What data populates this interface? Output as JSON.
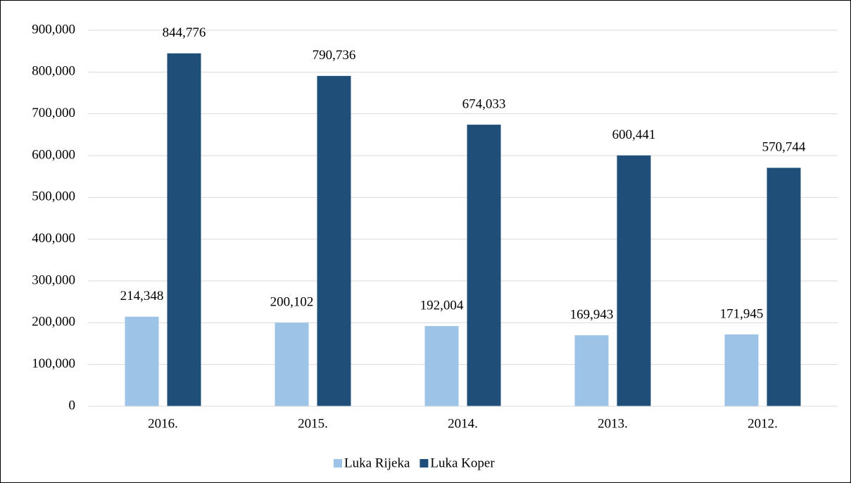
{
  "chart_data": {
    "type": "bar",
    "categories": [
      "2016.",
      "2015.",
      "2014.",
      "2013.",
      "2012."
    ],
    "series": [
      {
        "name": "Luka Rijeka",
        "color": "#9dc3e6",
        "values": [
          214348,
          200102,
          192004,
          169943,
          171945
        ],
        "value_labels": [
          "214,348",
          "200,102",
          "192,004",
          "169,943",
          "171,945"
        ]
      },
      {
        "name": "Luka Koper",
        "color": "#1f4e79",
        "values": [
          844776,
          790736,
          674033,
          600441,
          570744
        ],
        "value_labels": [
          "844,776",
          "790,736",
          "674,033",
          "600,441",
          "570,744"
        ]
      }
    ],
    "ylim": [
      0,
      900000
    ],
    "yticks": [
      0,
      {
        "value": 100000,
        "label": "100,000"
      },
      {
        "value": 200000,
        "label": "200,000"
      },
      {
        "value": 300000,
        "label": "300,000"
      },
      {
        "value": 400000,
        "label": "400,000"
      },
      {
        "value": 500000,
        "label": "500,000"
      },
      {
        "value": 600000,
        "label": "600,000"
      },
      {
        "value": 700000,
        "label": "700,000"
      },
      {
        "value": 800000,
        "label": "800,000"
      },
      {
        "value": 900000,
        "label": "900,000"
      }
    ],
    "grid": true,
    "legend": "bottom"
  }
}
